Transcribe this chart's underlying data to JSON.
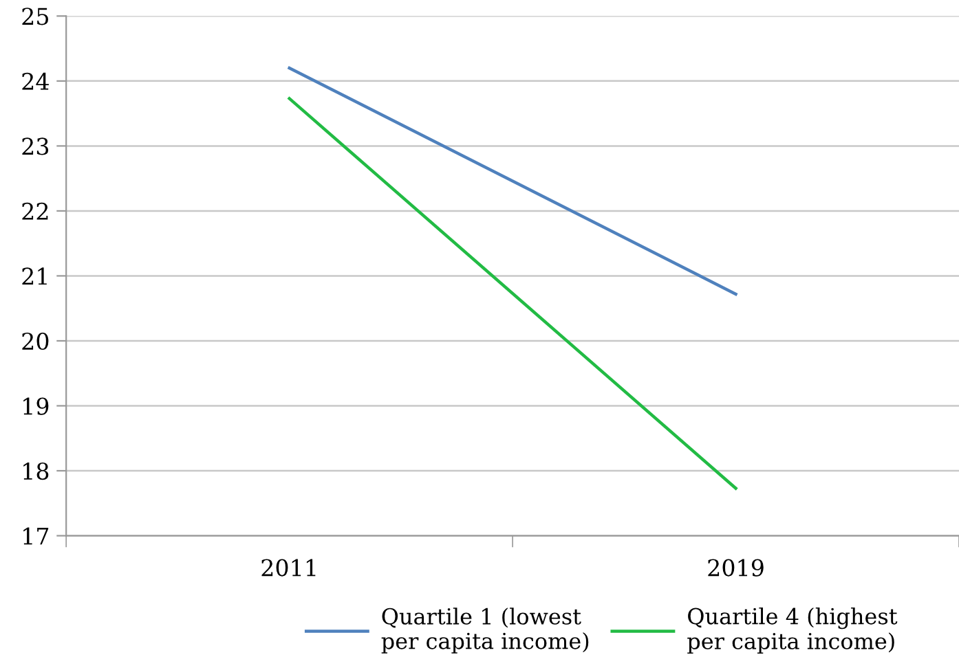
{
  "chart_data": {
    "type": "line",
    "categories": [
      "2011",
      "2019"
    ],
    "series": [
      {
        "name": "Quartile 1 (lowest per capita income)",
        "color": "#4f81bd",
        "values": [
          24.2,
          20.72
        ]
      },
      {
        "name": "Quartile 4 (highest per capita income)",
        "color": "#22bb44",
        "values": [
          23.73,
          17.73
        ]
      }
    ],
    "ylim": [
      17,
      25
    ],
    "yticks": [
      17,
      18,
      19,
      20,
      21,
      22,
      23,
      24,
      25
    ],
    "grid": "y",
    "legend": "bottom",
    "marker": "none",
    "line_style": "solid"
  }
}
